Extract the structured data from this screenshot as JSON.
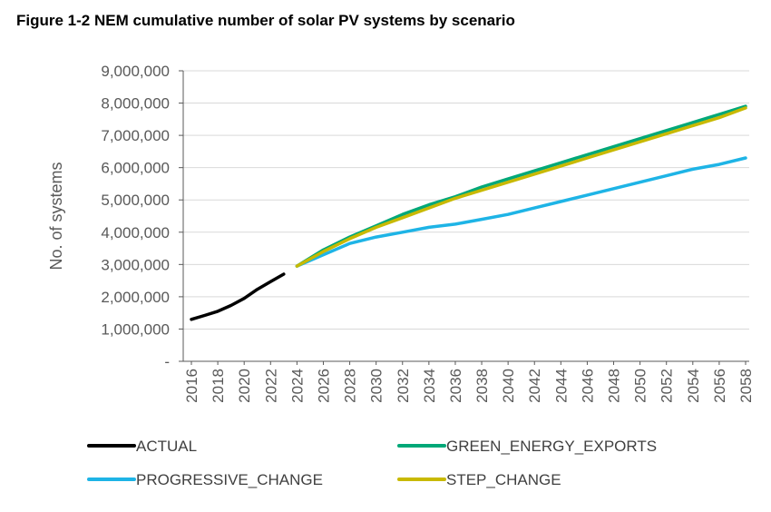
{
  "figure_title": "Figure 1-2 NEM cumulative number of solar PV systems by scenario",
  "chart_data": {
    "type": "line",
    "title": "Figure 1-2 NEM cumulative number of solar PV systems by scenario",
    "xlabel": "",
    "ylabel": "No. of systems",
    "ylim": [
      0,
      9000000
    ],
    "xlim": [
      2016,
      2058
    ],
    "y_ticks": [
      0,
      1000000,
      2000000,
      3000000,
      4000000,
      5000000,
      6000000,
      7000000,
      8000000,
      9000000
    ],
    "y_tick_labels": [
      "-",
      "1,000,000",
      "2,000,000",
      "3,000,000",
      "4,000,000",
      "5,000,000",
      "6,000,000",
      "7,000,000",
      "8,000,000",
      "9,000,000"
    ],
    "x_ticks": [
      2016,
      2018,
      2020,
      2022,
      2024,
      2026,
      2028,
      2030,
      2032,
      2034,
      2036,
      2038,
      2040,
      2042,
      2044,
      2046,
      2048,
      2050,
      2052,
      2054,
      2056,
      2058
    ],
    "x_tick_labels": [
      "2016",
      "2018",
      "2020",
      "2022",
      "2024",
      "2026",
      "2028",
      "2030",
      "2032",
      "2034",
      "2036",
      "2038",
      "2040",
      "2042",
      "2044",
      "2046",
      "2048",
      "2050",
      "2052",
      "2054",
      "2056",
      "2058"
    ],
    "grid": "horizontal",
    "legend_position": "bottom",
    "series": [
      {
        "name": "ACTUAL",
        "color": "#000000",
        "x": [
          2016,
          2017,
          2018,
          2019,
          2020,
          2021,
          2022,
          2023
        ],
        "values": [
          1300000,
          1420000,
          1550000,
          1730000,
          1950000,
          2230000,
          2470000,
          2700000
        ]
      },
      {
        "name": "GREEN_ENERGY_EXPORTS",
        "color": "#00A878",
        "x": [
          2024,
          2026,
          2028,
          2030,
          2032,
          2034,
          2036,
          2038,
          2040,
          2042,
          2044,
          2046,
          2048,
          2050,
          2052,
          2054,
          2056,
          2058
        ],
        "values": [
          2950000,
          3450000,
          3850000,
          4200000,
          4550000,
          4850000,
          5100000,
          5400000,
          5650000,
          5900000,
          6150000,
          6400000,
          6650000,
          6900000,
          7150000,
          7400000,
          7650000,
          7900000
        ]
      },
      {
        "name": "PROGRESSIVE_CHANGE",
        "color": "#1EB4E6",
        "x": [
          2024,
          2026,
          2028,
          2030,
          2032,
          2034,
          2036,
          2038,
          2040,
          2042,
          2044,
          2046,
          2048,
          2050,
          2052,
          2054,
          2056,
          2058
        ],
        "values": [
          2950000,
          3300000,
          3650000,
          3850000,
          4000000,
          4150000,
          4250000,
          4400000,
          4550000,
          4750000,
          4950000,
          5150000,
          5350000,
          5550000,
          5750000,
          5950000,
          6100000,
          6300000
        ]
      },
      {
        "name": "STEP_CHANGE",
        "color": "#C8B900",
        "x": [
          2024,
          2026,
          2028,
          2030,
          2032,
          2034,
          2036,
          2038,
          2040,
          2042,
          2044,
          2046,
          2048,
          2050,
          2052,
          2054,
          2056,
          2058
        ],
        "values": [
          2950000,
          3400000,
          3800000,
          4150000,
          4450000,
          4750000,
          5050000,
          5300000,
          5550000,
          5800000,
          6050000,
          6300000,
          6550000,
          6800000,
          7050000,
          7300000,
          7550000,
          7850000
        ]
      }
    ]
  }
}
